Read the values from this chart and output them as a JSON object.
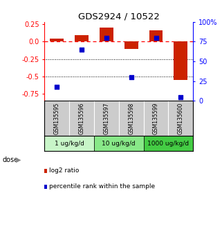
{
  "title": "GDS2924 / 10522",
  "samples": [
    "GSM135595",
    "GSM135596",
    "GSM135597",
    "GSM135598",
    "GSM135599",
    "GSM135600"
  ],
  "log2_ratio": [
    0.04,
    0.09,
    0.2,
    -0.11,
    0.16,
    -0.55
  ],
  "percentile_rank": [
    18,
    65,
    80,
    30,
    80,
    5
  ],
  "dose_groups": [
    {
      "label": "1 ug/kg/d",
      "samples": [
        0,
        1
      ],
      "color": "#c8f5c8"
    },
    {
      "label": "10 ug/kg/d",
      "samples": [
        2,
        3
      ],
      "color": "#88e888"
    },
    {
      "label": "1000 ug/kg/d",
      "samples": [
        4,
        5
      ],
      "color": "#44cc44"
    }
  ],
  "ylim_left": [
    -0.85,
    0.28
  ],
  "ylim_right": [
    0,
    100
  ],
  "left_ticks": [
    0.25,
    0.0,
    -0.25,
    -0.5,
    -0.75
  ],
  "right_ticks": [
    100,
    75,
    50,
    25,
    0
  ],
  "bar_color": "#cc2200",
  "point_color": "#0000cc",
  "hline_y": 0.0,
  "dotted_lines": [
    -0.25,
    -0.5
  ],
  "sample_box_color": "#cccccc",
  "legend_bar_label": "log2 ratio",
  "legend_point_label": "percentile rank within the sample",
  "background_color": "#ffffff"
}
